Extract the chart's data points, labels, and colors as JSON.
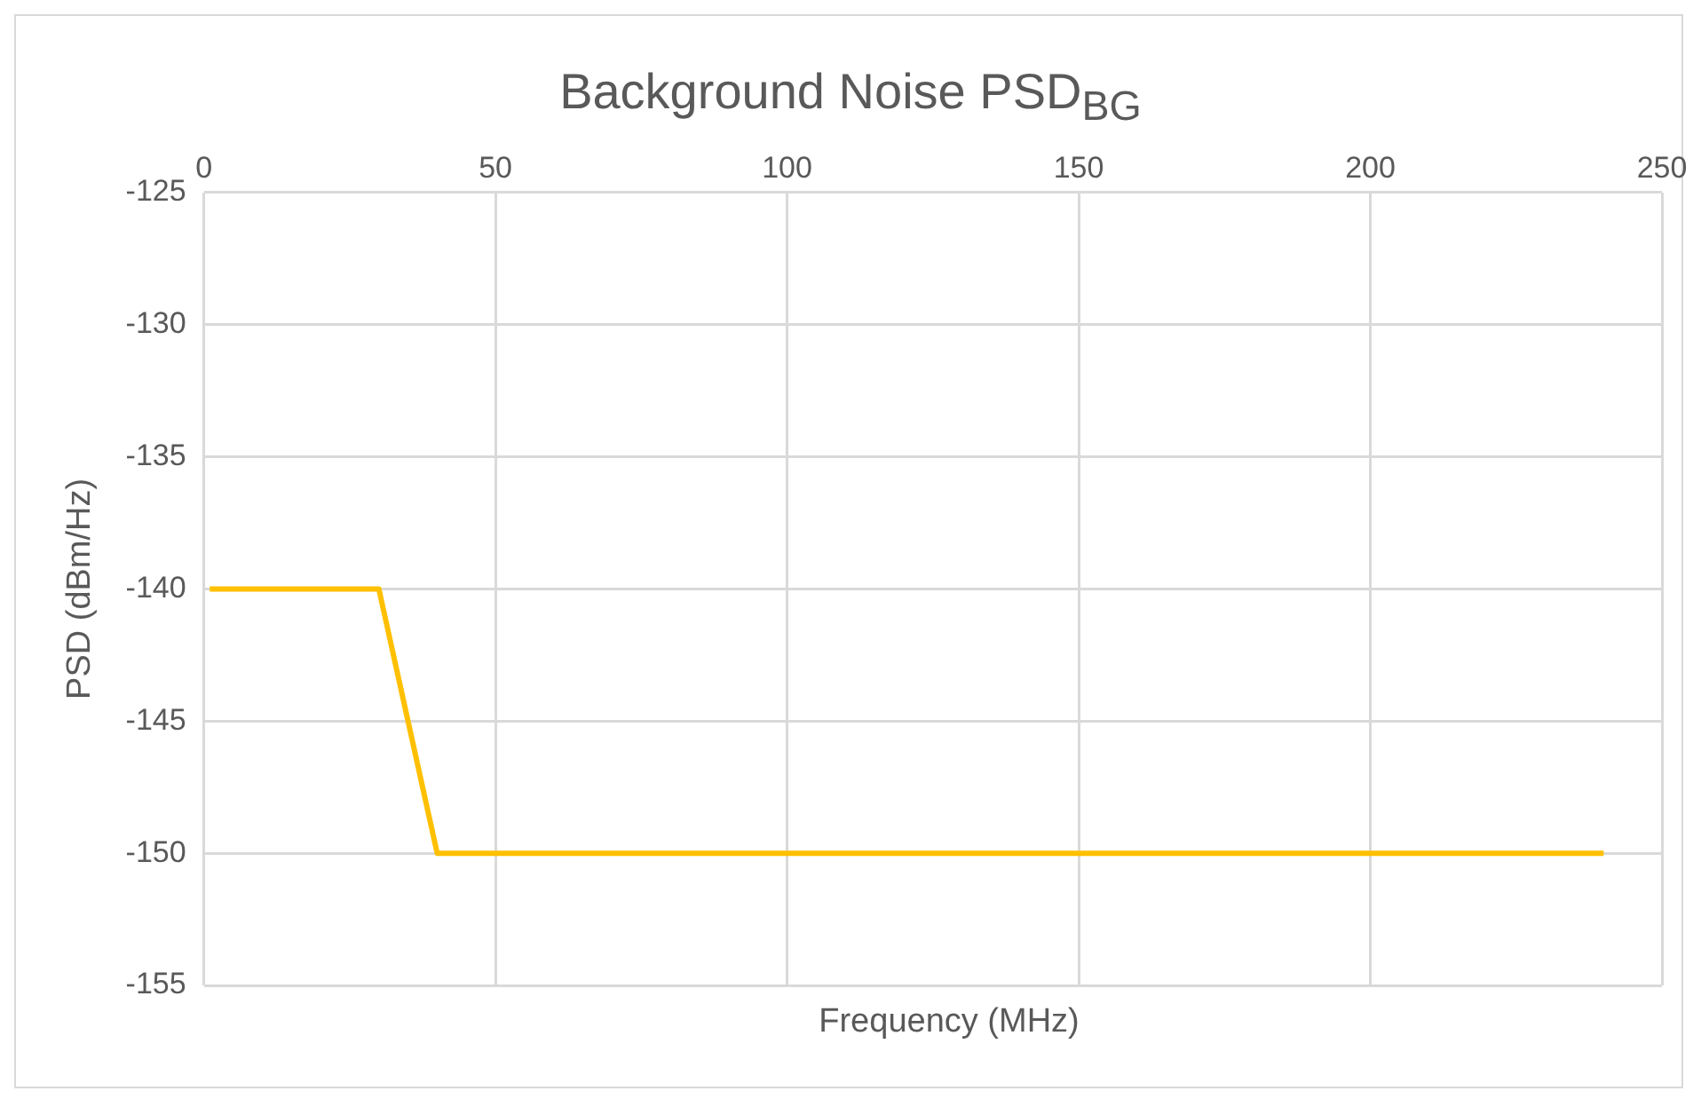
{
  "chart_data": {
    "type": "line",
    "title": "Background Noise PSD$_{BG}$",
    "xlabel": "Frequency (MHz)",
    "ylabel": "PSD (dBm/Hz)",
    "x": [
      1,
      30,
      40,
      240
    ],
    "series": [
      {
        "color": "#ffc000",
        "values": [
          -140,
          -140,
          -150,
          -150
        ]
      }
    ],
    "xlim": [
      0,
      250
    ],
    "xticks": [
      0,
      50,
      100,
      150,
      200,
      250
    ],
    "ylim": [
      -155,
      -125
    ],
    "yticks": [
      -155,
      -150,
      -145,
      -140,
      -135,
      -130,
      -125
    ],
    "grid": true,
    "legend": false,
    "marker": "none",
    "line_style": "solid"
  }
}
